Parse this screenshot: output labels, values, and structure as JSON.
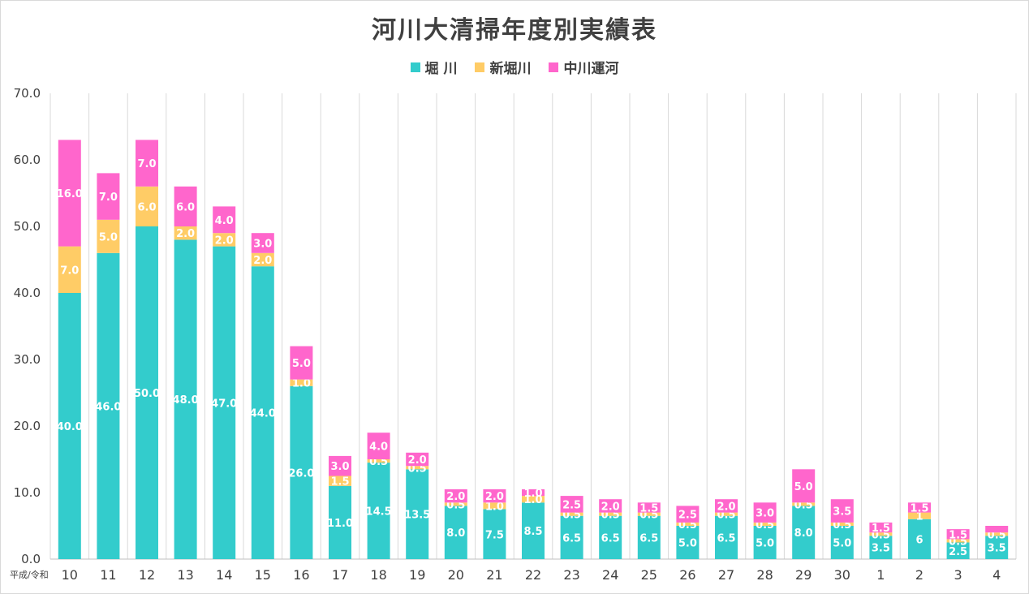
{
  "chart_data": {
    "type": "bar",
    "stacked": true,
    "title": "河川大清掃年度別実績表",
    "xlabel": "平成/令和",
    "ylabel": "",
    "ylim": [
      0,
      70
    ],
    "yticks": [
      "0.0",
      "10.0",
      "20.0",
      "30.0",
      "40.0",
      "50.0",
      "60.0",
      "70.0"
    ],
    "grid": "vertical",
    "legend_position": "top",
    "categories": [
      "10",
      "11",
      "12",
      "13",
      "14",
      "15",
      "16",
      "17",
      "18",
      "19",
      "20",
      "21",
      "22",
      "23",
      "24",
      "25",
      "26",
      "27",
      "28",
      "29",
      "30",
      "1",
      "2",
      "3",
      "4"
    ],
    "series": [
      {
        "name": "堀 川",
        "color": "#33CCCC",
        "values": [
          40,
          46,
          50,
          48,
          47,
          44,
          26,
          11,
          14.5,
          13.5,
          8,
          7.5,
          8.5,
          6.5,
          6.5,
          6.5,
          5,
          6.5,
          5,
          8,
          5,
          3.5,
          6,
          2.5,
          3.5
        ],
        "labels": [
          "40.0",
          "46.0",
          "50.0",
          "48.0",
          "47.0",
          "44.0",
          "26.0",
          "11.0",
          "14.5",
          "13.5",
          "8.0",
          "7.5",
          "8.5",
          "6.5",
          "6.5",
          "6.5",
          "5.0",
          "6.5",
          "5.0",
          "8.0",
          "5.0",
          "3.5",
          "6",
          "2.5",
          "3.5"
        ]
      },
      {
        "name": "新堀川",
        "color": "#FFCC66",
        "values": [
          7,
          5,
          6,
          2,
          2,
          2,
          1,
          1.5,
          0.5,
          0.5,
          0.5,
          1,
          1,
          0.5,
          0.5,
          0.5,
          0.5,
          0.5,
          0.5,
          0.5,
          0.5,
          0.5,
          1,
          0.5,
          0.5
        ],
        "labels": [
          "7.0",
          "5.0",
          "6.0",
          "2.0",
          "2.0",
          "2.0",
          "1.0",
          "1.5",
          "0.5",
          "0.5",
          "0.5",
          "1.0",
          "1.0",
          "0.5",
          "0.5",
          "0.5",
          "0.5",
          "0.5",
          "0.5",
          "0.5",
          "0.5",
          "0.5",
          "1",
          "0.5",
          "0.5"
        ]
      },
      {
        "name": "中川運河",
        "color": "#FF66CC",
        "values": [
          16,
          7,
          7,
          6,
          4,
          3,
          5,
          3,
          4,
          2,
          2,
          2,
          1,
          2.5,
          2,
          1.5,
          2.5,
          2,
          3,
          5,
          3.5,
          1.5,
          1.5,
          1.5,
          1
        ],
        "labels": [
          "16.0",
          "7.0",
          "7.0",
          "6.0",
          "4.0",
          "3.0",
          "5.0",
          "3.0",
          "4.0",
          "2.0",
          "2.0",
          "2.0",
          "1.0",
          "2.5",
          "2.0",
          "1.5",
          "2.5",
          "2.0",
          "3.0",
          "5.0",
          "3.5",
          "1.5",
          "1.5",
          "1.5",
          ""
        ]
      }
    ]
  }
}
